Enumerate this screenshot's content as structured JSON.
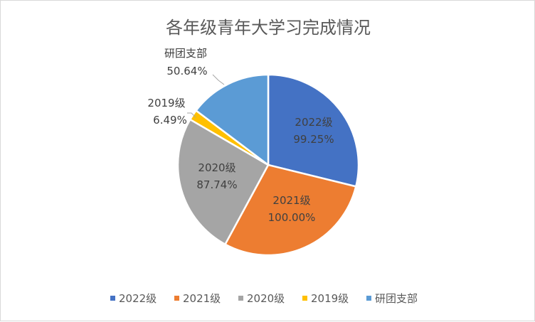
{
  "chart_data": {
    "type": "pie",
    "title": "各年级青年大学习完成情况",
    "categories": [
      "2022级",
      "2021级",
      "2020级",
      "2019级",
      "研团支部"
    ],
    "values": [
      99.25,
      100.0,
      87.74,
      6.49,
      50.64
    ],
    "labels": [
      "99.25%",
      "100.00%",
      "87.74%",
      "6.49%",
      "50.64%"
    ],
    "colors": [
      "#4472c4",
      "#ed7d31",
      "#a5a5a5",
      "#ffc000",
      "#5b9bd5"
    ],
    "legend_position": "bottom",
    "start_angle": "12 o'clock",
    "direction": "clockwise"
  }
}
